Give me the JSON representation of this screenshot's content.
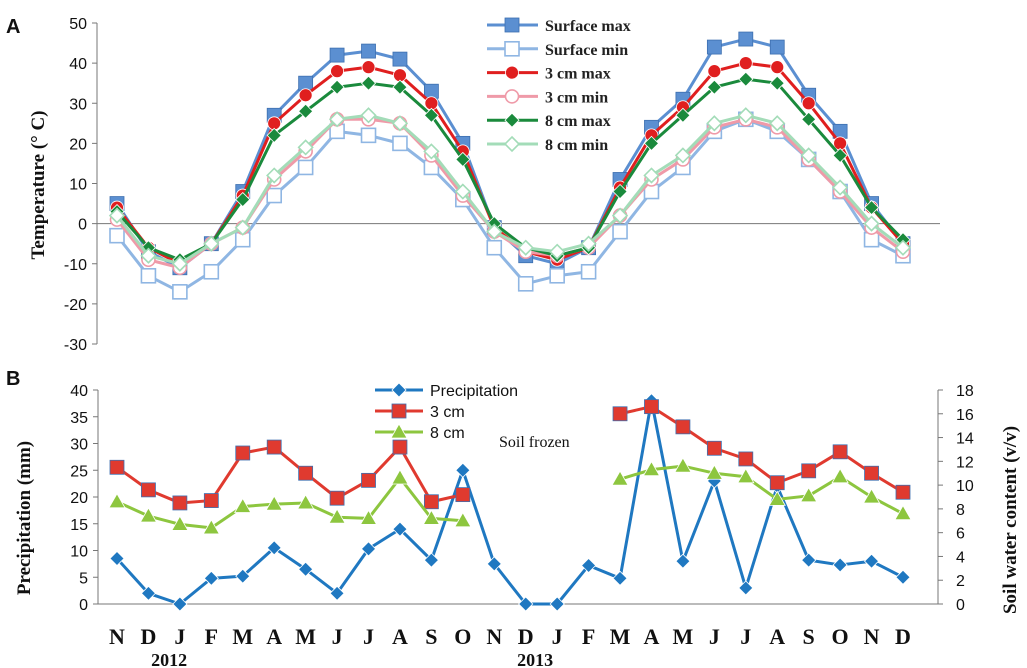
{
  "chart_data": [
    {
      "panel": "A",
      "type": "line",
      "ylabel": "Temperature (° C)",
      "ylim": [
        -30,
        50
      ],
      "yticks": [
        -30,
        -20,
        -10,
        0,
        10,
        20,
        30,
        40,
        50
      ],
      "x": [
        "N",
        "D",
        "J",
        "F",
        "M",
        "A",
        "M",
        "J",
        "J",
        "A",
        "S",
        "O",
        "N",
        "D",
        "J",
        "F",
        "M",
        "A",
        "M",
        "J",
        "J",
        "A",
        "S",
        "O",
        "N",
        "D"
      ],
      "series": [
        {
          "name": "Surface max",
          "color": "#5b8fd1",
          "marker": "square-filled",
          "values": [
            5,
            -7,
            -11,
            -5,
            8,
            27,
            35,
            42,
            43,
            41,
            33,
            20,
            -1,
            -8,
            -10,
            -6,
            11,
            24,
            31,
            44,
            46,
            44,
            32,
            23,
            5,
            -5
          ]
        },
        {
          "name": "Surface min",
          "color": "#8fb6e3",
          "marker": "square-open",
          "values": [
            -3,
            -13,
            -17,
            -12,
            -4,
            7,
            14,
            23,
            22,
            20,
            14,
            6,
            -6,
            -15,
            -13,
            -12,
            -2,
            8,
            14,
            23,
            26,
            23,
            16,
            8,
            -4,
            -8
          ]
        },
        {
          "name": "3 cm max",
          "color": "#e01f1f",
          "marker": "circle-filled",
          "values": [
            4,
            -6,
            -10,
            -5,
            7,
            25,
            32,
            38,
            39,
            37,
            30,
            18,
            -1,
            -7,
            -9,
            -6,
            9,
            22,
            29,
            38,
            40,
            39,
            30,
            20,
            4,
            -5
          ]
        },
        {
          "name": "3 cm min",
          "color": "#ef9aa8",
          "marker": "circle-open",
          "values": [
            1,
            -9,
            -11,
            -5,
            -1,
            11,
            18,
            26,
            26,
            25,
            17,
            7,
            -2,
            -7,
            -8,
            -6,
            2,
            11,
            16,
            24,
            26,
            24,
            16,
            8,
            -1,
            -7
          ]
        },
        {
          "name": "8 cm max",
          "color": "#1a8a3c",
          "marker": "diamond-filled",
          "values": [
            3,
            -6,
            -9,
            -5,
            6,
            22,
            28,
            34,
            35,
            34,
            27,
            16,
            0,
            -6,
            -8,
            -6,
            8,
            20,
            27,
            34,
            36,
            35,
            26,
            17,
            4,
            -4
          ]
        },
        {
          "name": "8 cm min",
          "color": "#a3dcb8",
          "marker": "diamond-open",
          "values": [
            2,
            -8,
            -10,
            -5,
            -1,
            12,
            19,
            26,
            27,
            25,
            18,
            8,
            -2,
            -6,
            -7,
            -5,
            2,
            12,
            17,
            25,
            27,
            25,
            17,
            9,
            0,
            -6
          ]
        }
      ]
    },
    {
      "panel": "B",
      "type": "line",
      "ylabel": "Precipitation (mm)",
      "ylim": [
        0,
        40
      ],
      "yticks": [
        0,
        5,
        10,
        15,
        20,
        25,
        30,
        35,
        40
      ],
      "y2label": "Soil water content  (v/v)",
      "y2lim": [
        0,
        18
      ],
      "y2ticks": [
        0,
        2,
        4,
        6,
        8,
        10,
        12,
        14,
        16,
        18
      ],
      "x": [
        "N",
        "D",
        "J",
        "F",
        "M",
        "A",
        "M",
        "J",
        "J",
        "A",
        "S",
        "O",
        "N",
        "D",
        "J",
        "F",
        "M",
        "A",
        "M",
        "J",
        "J",
        "A",
        "S",
        "O",
        "N",
        "D"
      ],
      "xgroups": [
        {
          "label": "2012",
          "start": 0,
          "end": 1
        },
        {
          "label": "2013",
          "start": 2,
          "end": 25
        }
      ],
      "annotation": "Soil frozen",
      "series": [
        {
          "name": "Precipitation",
          "axis": "left",
          "color": "#1f78c1",
          "marker": "diamond-filled",
          "values": [
            8.5,
            2,
            0,
            4.8,
            5.2,
            10.5,
            6.5,
            2,
            10.3,
            14,
            8.2,
            25,
            7.5,
            0,
            0,
            7.2,
            4.8,
            38,
            8,
            23,
            3,
            22,
            8.2,
            7.3,
            8,
            5
          ]
        },
        {
          "name": "3 cm",
          "axis": "right",
          "color": "#e03a2f",
          "marker": "square-filled",
          "values": [
            11.5,
            9.6,
            8.5,
            8.7,
            12.7,
            13.2,
            11,
            8.9,
            10.4,
            13.2,
            8.6,
            9.2,
            null,
            null,
            null,
            null,
            16,
            16.6,
            14.9,
            13.1,
            12.2,
            10.2,
            11.2,
            12.8,
            11,
            9.4
          ]
        },
        {
          "name": "8 cm",
          "axis": "right",
          "color": "#8dc63f",
          "marker": "triangle-filled",
          "values": [
            8.6,
            7.4,
            6.7,
            6.4,
            8.2,
            8.4,
            8.5,
            7.3,
            7.2,
            10.6,
            7.2,
            7,
            null,
            null,
            null,
            null,
            10.5,
            11.3,
            11.6,
            11,
            10.7,
            8.8,
            9.1,
            10.7,
            9,
            7.6
          ]
        }
      ]
    }
  ]
}
